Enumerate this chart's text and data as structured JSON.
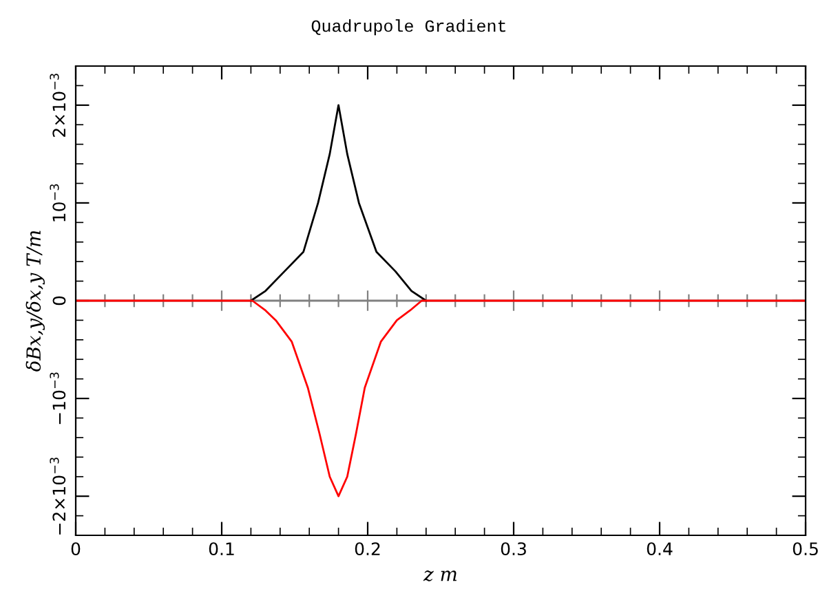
{
  "chart_data": {
    "type": "line",
    "title": "Quadrupole Gradient",
    "xlabel": "z m",
    "ylabel": "δBx,y/δx,y T/m",
    "series": [
      {
        "color": "#000000",
        "x": [
          0.12,
          0.13,
          0.143,
          0.156,
          0.166,
          0.174,
          0.18,
          0.186,
          0.194,
          0.206,
          0.219,
          0.23,
          0.24
        ],
        "values": [
          0,
          0.0001,
          0.0003,
          0.0005,
          0.001,
          0.0015,
          0.002,
          0.0015,
          0.001,
          0.0005,
          0.0003,
          0.0001,
          0
        ]
      },
      {
        "color": "#ff0000",
        "x": [
          0,
          0.121,
          0.13,
          0.137,
          0.148,
          0.159,
          0.167,
          0.174,
          0.18,
          0.186,
          0.192,
          0.198,
          0.209,
          0.22,
          0.229,
          0.237,
          0.5
        ],
        "values": [
          0,
          0,
          -0.0001,
          -0.0002,
          -0.00042,
          -0.00089,
          -0.00136,
          -0.0018,
          -0.002,
          -0.0018,
          -0.00136,
          -0.00089,
          -0.00042,
          -0.0002,
          -0.0001,
          0,
          0
        ]
      }
    ],
    "xlim": [
      0,
      0.5
    ],
    "ylim": [
      -0.0024,
      0.0024
    ],
    "xticks": [
      0,
      {
        "value": 0.02,
        "label": null
      },
      {
        "value": 0.04,
        "label": null
      },
      {
        "value": 0.06,
        "label": null
      },
      {
        "value": 0.08,
        "label": null
      },
      0.1,
      {
        "value": 0.12,
        "label": null
      },
      {
        "value": 0.14,
        "label": null
      },
      {
        "value": 0.16,
        "label": null
      },
      {
        "value": 0.18,
        "label": null
      },
      0.2,
      {
        "value": 0.22,
        "label": null
      },
      {
        "value": 0.24,
        "label": null
      },
      {
        "value": 0.26,
        "label": null
      },
      {
        "value": 0.28,
        "label": null
      },
      0.3,
      {
        "value": 0.32,
        "label": null
      },
      {
        "value": 0.34,
        "label": null
      },
      {
        "value": 0.36,
        "label": null
      },
      {
        "value": 0.38,
        "label": null
      },
      0.4,
      {
        "value": 0.42,
        "label": null
      },
      {
        "value": 0.44,
        "label": null
      },
      {
        "value": 0.46,
        "label": null
      },
      {
        "value": 0.48,
        "label": null
      },
      0.5
    ],
    "yticks": [
      {
        "value": -0.0024,
        "label": null
      },
      {
        "value": -0.0022,
        "label": null
      },
      {
        "value": -0.002,
        "label": "−2×10$^{−3}$"
      },
      {
        "value": -0.0018,
        "label": null
      },
      {
        "value": -0.0016,
        "label": null
      },
      {
        "value": -0.0014,
        "label": null
      },
      {
        "value": -0.0012,
        "label": null
      },
      {
        "value": -0.001,
        "label": "−10$^{−3}$"
      },
      {
        "value": -0.0008,
        "label": null
      },
      {
        "value": -0.0006,
        "label": null
      },
      {
        "value": -0.0004,
        "label": null
      },
      {
        "value": -0.0002,
        "label": null
      },
      0,
      {
        "value": 0.0002,
        "label": null
      },
      {
        "value": 0.0004,
        "label": null
      },
      {
        "value": 0.0006,
        "label": null
      },
      {
        "value": 0.0008,
        "label": null
      },
      {
        "value": 0.001,
        "label": "10$^{−3}$"
      },
      {
        "value": 0.0012,
        "label": null
      },
      {
        "value": 0.0014,
        "label": null
      },
      {
        "value": 0.0016,
        "label": null
      },
      {
        "value": 0.0018,
        "label": null
      },
      {
        "value": 0.002,
        "label": "2×10$^{−3}$"
      },
      {
        "value": 0.0022,
        "label": null
      },
      {
        "value": 0.0024,
        "label": null
      }
    ],
    "ref_lines": [
      {
        "axis": "y",
        "value": 0,
        "color": "#808080"
      }
    ],
    "grid": false,
    "legend": false,
    "marker": "none",
    "line_style": "solid"
  }
}
